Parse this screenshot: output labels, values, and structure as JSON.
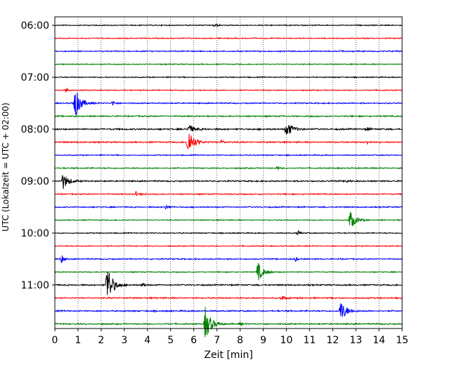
{
  "chart_data": {
    "type": "line",
    "title": "",
    "xlabel": "Zeit  [min]",
    "ylabel": "UTC (Lokalzeit = UTC + 02:00)",
    "xlim": [
      0,
      15
    ],
    "xticks": [
      0,
      1,
      2,
      3,
      4,
      5,
      6,
      7,
      8,
      9,
      10,
      11,
      12,
      13,
      14,
      15
    ],
    "yticks": [
      "06:00",
      "07:00",
      "08:00",
      "09:00",
      "10:00",
      "11:00"
    ],
    "grid": "vertical dotted",
    "row_interval_min": 15,
    "start_time": "06:00",
    "series_colors": [
      "#000000",
      "#ff0000",
      "#0000ff",
      "#008000"
    ],
    "traces": [
      {
        "time": "06:00",
        "color": "#000000",
        "noise": 0.6,
        "events": [
          {
            "x": 6.9,
            "amp": 3,
            "w": 0.3
          }
        ]
      },
      {
        "time": "06:15",
        "color": "#ff0000",
        "noise": 0.6,
        "events": []
      },
      {
        "time": "06:30",
        "color": "#0000ff",
        "noise": 0.7,
        "events": [
          {
            "x": 12.4,
            "amp": 2.5,
            "w": 0.2
          }
        ]
      },
      {
        "time": "06:45",
        "color": "#008000",
        "noise": 0.6,
        "events": []
      },
      {
        "time": "07:00",
        "color": "#000000",
        "noise": 0.6,
        "events": []
      },
      {
        "time": "07:15",
        "color": "#ff0000",
        "noise": 0.6,
        "events": [
          {
            "x": 0.5,
            "amp": 3,
            "w": 0.15
          }
        ]
      },
      {
        "time": "07:30",
        "color": "#0000ff",
        "noise": 0.7,
        "events": [
          {
            "x": 0.85,
            "amp": 25,
            "w": 0.6
          },
          {
            "x": 2.5,
            "amp": 4,
            "w": 0.25
          }
        ]
      },
      {
        "time": "07:45",
        "color": "#008000",
        "noise": 0.8,
        "events": []
      },
      {
        "time": "08:00",
        "color": "#000000",
        "noise": 0.9,
        "events": [
          {
            "x": 5.8,
            "amp": 6,
            "w": 0.6
          },
          {
            "x": 10.0,
            "amp": 12,
            "w": 0.6
          },
          {
            "x": 13.5,
            "amp": 3,
            "w": 0.2
          }
        ]
      },
      {
        "time": "08:15",
        "color": "#ff0000",
        "noise": 0.8,
        "events": [
          {
            "x": 5.75,
            "amp": 22,
            "w": 0.6
          },
          {
            "x": 7.2,
            "amp": 3,
            "w": 0.3
          },
          {
            "x": 13.5,
            "amp": 3,
            "w": 0.2
          }
        ]
      },
      {
        "time": "08:30",
        "color": "#0000ff",
        "noise": 0.6,
        "events": []
      },
      {
        "time": "08:45",
        "color": "#008000",
        "noise": 0.7,
        "events": [
          {
            "x": 9.6,
            "amp": 3,
            "w": 0.2
          }
        ]
      },
      {
        "time": "09:00",
        "color": "#000000",
        "noise": 0.8,
        "events": [
          {
            "x": 0.35,
            "amp": 12,
            "w": 0.6
          },
          {
            "x": 12.6,
            "amp": 3,
            "w": 0.3
          }
        ]
      },
      {
        "time": "09:15",
        "color": "#ff0000",
        "noise": 0.7,
        "events": [
          {
            "x": 3.5,
            "amp": 3,
            "w": 0.4
          }
        ]
      },
      {
        "time": "09:30",
        "color": "#0000ff",
        "noise": 0.7,
        "events": [
          {
            "x": 4.8,
            "amp": 3,
            "w": 0.4
          }
        ]
      },
      {
        "time": "09:45",
        "color": "#008000",
        "noise": 0.6,
        "events": [
          {
            "x": 12.75,
            "amp": 14,
            "w": 0.6
          }
        ]
      },
      {
        "time": "10:00",
        "color": "#000000",
        "noise": 0.6,
        "events": [
          {
            "x": 10.5,
            "amp": 3,
            "w": 0.3
          }
        ]
      },
      {
        "time": "10:15",
        "color": "#ff0000",
        "noise": 0.6,
        "events": []
      },
      {
        "time": "10:30",
        "color": "#0000ff",
        "noise": 0.7,
        "events": [
          {
            "x": 0.3,
            "amp": 7,
            "w": 0.2
          },
          {
            "x": 10.4,
            "amp": 3,
            "w": 0.2
          }
        ]
      },
      {
        "time": "10:45",
        "color": "#008000",
        "noise": 0.6,
        "events": [
          {
            "x": 8.75,
            "amp": 15,
            "w": 0.6
          }
        ]
      },
      {
        "time": "11:00",
        "color": "#000000",
        "noise": 0.8,
        "events": [
          {
            "x": 2.25,
            "amp": 30,
            "w": 0.6
          },
          {
            "x": 3.8,
            "amp": 4,
            "w": 0.2
          }
        ]
      },
      {
        "time": "11:15",
        "color": "#ff0000",
        "noise": 0.8,
        "events": [
          {
            "x": 9.8,
            "amp": 3,
            "w": 0.4
          }
        ]
      },
      {
        "time": "11:30",
        "color": "#0000ff",
        "noise": 0.8,
        "events": [
          {
            "x": 12.35,
            "amp": 16,
            "w": 0.6
          }
        ]
      },
      {
        "time": "11:45",
        "color": "#008000",
        "noise": 0.8,
        "events": [
          {
            "x": 6.5,
            "amp": 24,
            "w": 0.6
          },
          {
            "x": 8.0,
            "amp": 3,
            "w": 0.2
          }
        ]
      }
    ]
  }
}
